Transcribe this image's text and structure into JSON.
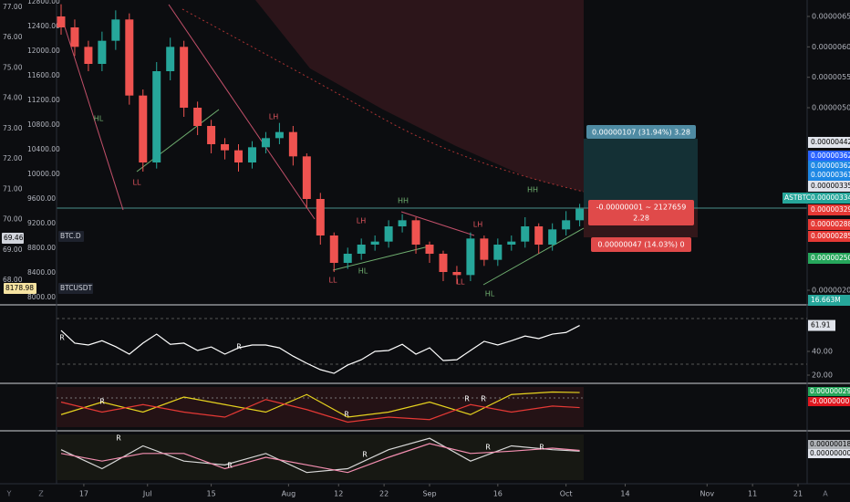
{
  "chart_data": [
    {
      "type": "candlestick",
      "symbol": "ASTBTC",
      "x": [
        11,
        14,
        17,
        20,
        23,
        26,
        29,
        32,
        35,
        38,
        41,
        44,
        47,
        50,
        53,
        56,
        59,
        62,
        65,
        68,
        71,
        74,
        77,
        80,
        83,
        86,
        89,
        92,
        95,
        98,
        101,
        104,
        107,
        110,
        113,
        116,
        119,
        122,
        125
      ],
      "open": [
        6.5e-06,
        6.32e-06,
        6e-06,
        5.72e-06,
        6.1e-06,
        6.45e-06,
        5.2e-06,
        4.1e-06,
        5.6e-06,
        6e-06,
        5e-06,
        4.7e-06,
        4.4e-06,
        4.3e-06,
        4.1e-06,
        4.35e-06,
        4.5e-06,
        4.6e-06,
        4.2e-06,
        3.5e-06,
        2.9e-06,
        2.45e-06,
        2.6e-06,
        2.75e-06,
        2.8e-06,
        3.05e-06,
        3.15e-06,
        2.75e-06,
        2.6e-06,
        2.3e-06,
        2.25e-06,
        2.85e-06,
        2.5e-06,
        2.75e-06,
        2.8e-06,
        3.05e-06,
        2.75e-06,
        3e-06,
        3.15e-06
      ],
      "high": [
        6.7e-06,
        6.45e-06,
        6.1e-06,
        6.25e-06,
        6.6e-06,
        6.55e-06,
        5.3e-06,
        5.75e-06,
        6.15e-06,
        6.1e-06,
        5.1e-06,
        4.8e-06,
        4.5e-06,
        4.4e-06,
        4.45e-06,
        4.6e-06,
        4.75e-06,
        4.7e-06,
        4.25e-06,
        3.6e-06,
        2.95e-06,
        2.7e-06,
        2.85e-06,
        2.9e-06,
        3.15e-06,
        3.25e-06,
        3.2e-06,
        2.8e-06,
        2.65e-06,
        2.4e-06,
        2.95e-06,
        2.9e-06,
        2.85e-06,
        2.9e-06,
        3.2e-06,
        3.1e-06,
        3.1e-06,
        3.3e-06,
        3.42e-06
      ],
      "low": [
        6.2e-06,
        5.85e-06,
        5.6e-06,
        5.6e-06,
        5.95e-06,
        5.05e-06,
        3.95e-06,
        4e-06,
        5.45e-06,
        4.85e-06,
        4.55e-06,
        4.25e-06,
        4.15e-06,
        3.95e-06,
        4e-06,
        4.25e-06,
        4.4e-06,
        4.05e-06,
        3.35e-06,
        2.75e-06,
        2.3e-06,
        2.35e-06,
        2.5e-06,
        2.65e-06,
        2.7e-06,
        2.95e-06,
        2.6e-06,
        2.45e-06,
        2.15e-06,
        2.1e-06,
        2.15e-06,
        2.4e-06,
        2.4e-06,
        2.65e-06,
        2.7e-06,
        2.6e-06,
        2.65e-06,
        2.9e-06,
        3.05e-06
      ],
      "close": [
        6.32e-06,
        6e-06,
        5.72e-06,
        6.1e-06,
        6.45e-06,
        5.2e-06,
        4.1e-06,
        5.6e-06,
        6e-06,
        5e-06,
        4.7e-06,
        4.4e-06,
        4.3e-06,
        4.1e-06,
        4.35e-06,
        4.5e-06,
        4.6e-06,
        4.2e-06,
        3.5e-06,
        2.9e-06,
        2.45e-06,
        2.6e-06,
        2.75e-06,
        2.8e-06,
        3.05e-06,
        3.15e-06,
        2.75e-06,
        2.6e-06,
        2.3e-06,
        2.25e-06,
        2.85e-06,
        2.5e-06,
        2.75e-06,
        2.8e-06,
        3.05e-06,
        2.75e-06,
        3e-06,
        3.15e-06,
        3.34e-06
      ],
      "up_color": "#26a69a",
      "down_color": "#ef5350",
      "xlim": [
        10,
        175
      ],
      "xticks": [
        {
          "value": 16,
          "label": "17"
        },
        {
          "value": 30,
          "label": "Jul"
        },
        {
          "value": 44,
          "label": "15"
        },
        {
          "value": 61,
          "label": "Aug"
        },
        {
          "value": 72,
          "label": "12"
        },
        {
          "value": 82,
          "label": "22"
        },
        {
          "value": 92,
          "label": "Sep"
        },
        {
          "value": 107,
          "label": "16"
        },
        {
          "value": 122,
          "label": "Oct"
        },
        {
          "value": 135,
          "label": "14"
        },
        {
          "value": 153,
          "label": "Nov"
        },
        {
          "value": 163,
          "label": "11"
        },
        {
          "value": 173,
          "label": "21"
        }
      ],
      "ylim": [
        1.79e-06,
        6.77e-06
      ],
      "yticks": [
        {
          "value": 6.5e-06,
          "label": "0.00000650"
        },
        {
          "value": 6e-06,
          "label": "0.00000600"
        },
        {
          "value": 5.5e-06,
          "label": "0.00000550"
        },
        {
          "value": 5e-06,
          "label": "0.00000500"
        },
        {
          "value": 2e-06,
          "label": "0.00000200"
        }
      ],
      "last_price": "0.00000334",
      "price_tags": [
        "0.00000442",
        "0.00000362",
        "0.00000362",
        "0.00000361",
        "0.00000335",
        "0.00000329",
        "0.00000288",
        "0.00000285",
        "0.00000250"
      ],
      "volume_tag": "16.663M",
      "left_axes": [
        {
          "name": "BTC.D",
          "ylim": [
            67.25,
            77.24
          ],
          "yticks": [
            {
              "value": 77,
              "label": "77.00"
            },
            {
              "value": 76,
              "label": "76.00"
            },
            {
              "value": 75,
              "label": "75.00"
            },
            {
              "value": 74,
              "label": "74.00"
            },
            {
              "value": 73,
              "label": "73.00"
            },
            {
              "value": 72,
              "label": "72.00"
            },
            {
              "value": 71,
              "label": "71.00"
            },
            {
              "value": 70,
              "label": "70.00"
            },
            {
              "value": 69,
              "label": "69.00"
            },
            {
              "value": 68,
              "label": "68.00"
            }
          ],
          "last": "69.46"
        },
        {
          "name": "BTCUSDT",
          "ylim": [
            7911,
            12830
          ],
          "yticks": [
            {
              "value": 12800,
              "label": "12800.00"
            },
            {
              "value": 12400,
              "label": "12400.00"
            },
            {
              "value": 12000,
              "label": "12000.00"
            },
            {
              "value": 11600,
              "label": "11600.00"
            },
            {
              "value": 11200,
              "label": "11200.00"
            },
            {
              "value": 10800,
              "label": "10800.00"
            },
            {
              "value": 10400,
              "label": "10400.00"
            },
            {
              "value": 10000,
              "label": "10000.00"
            },
            {
              "value": 9600,
              "label": "9600.00"
            },
            {
              "value": 9200,
              "label": "9200.00"
            },
            {
              "value": 8800,
              "label": "8800.00"
            },
            {
              "value": 8400,
              "label": "8400.00"
            },
            {
              "value": 8000,
              "label": "8000.00"
            }
          ],
          "last": "8178.98"
        }
      ],
      "measure": {
        "upper": "0.00000107 (31.94%) 3.28",
        "mid": "-0.00000001 ~ 2127659",
        "mid2": "2.28",
        "lower": "0.00000047 (14.03%) 0"
      },
      "annotations": [
        "HL",
        "LL",
        "LH",
        "LH",
        "LL",
        "HL",
        "HH",
        "LH",
        "LL",
        "HL",
        "HH"
      ],
      "toolbar": [
        "Y",
        "Z",
        "A"
      ]
    },
    {
      "type": "line",
      "color": "#ffffff",
      "x": [
        11,
        14,
        17,
        20,
        23,
        26,
        29,
        32,
        35,
        38,
        41,
        44,
        47,
        50,
        53,
        56,
        59,
        62,
        65,
        68,
        71,
        74,
        77,
        80,
        83,
        86,
        89,
        92,
        95,
        98,
        101,
        104,
        107,
        110,
        113,
        116,
        119,
        122,
        125
      ],
      "values": [
        57.7,
        47,
        45.4,
        49,
        44,
        37.7,
        47,
        54.6,
        46,
        47,
        40.8,
        43.8,
        37.7,
        43,
        45.4,
        45.4,
        43,
        36,
        30,
        24.6,
        21.5,
        28.5,
        33,
        40,
        40.8,
        46,
        37.7,
        43,
        32.3,
        33,
        40.8,
        48.5,
        45.4,
        49,
        53,
        50.8,
        54.6,
        56,
        61.91
      ],
      "ylim": [
        14.6,
        76.2
      ],
      "yticks": [
        {
          "value": 40,
          "label": "40.00"
        },
        {
          "value": 20,
          "label": "20.00"
        }
      ],
      "annotations": [
        "R",
        "R"
      ]
    },
    {
      "type": "line",
      "x": [
        11,
        20,
        29,
        38,
        47,
        56,
        65,
        74,
        83,
        92,
        101,
        110,
        119,
        125
      ],
      "series": [
        {
          "color": "#e6d31f",
          "values": [
            -1.5e-07,
            1e-07,
            -1e-07,
            2e-07,
            5e-08,
            -1e-07,
            2.5e-07,
            -2e-07,
            -1e-07,
            1e-07,
            -1.5e-07,
            2.5e-07,
            3e-07,
            2.9e-07
          ]
        },
        {
          "color": "#e53935",
          "values": [
            1e-07,
            -1e-07,
            5e-08,
            -1e-07,
            -2e-07,
            1.5e-07,
            -5e-08,
            -3e-07,
            -2e-07,
            -2.5e-07,
            5e-08,
            -1e-07,
            2e-08,
            -1e-08
          ]
        }
      ],
      "ylim": [
        -4e-07,
        4e-07
      ],
      "tags": [
        "0.00000029",
        "-0.00000001"
      ],
      "annotations": [
        "R",
        "R",
        "R",
        "R"
      ]
    },
    {
      "type": "line",
      "x": [
        11,
        20,
        29,
        38,
        47,
        56,
        65,
        74,
        83,
        92,
        101,
        110,
        119,
        125
      ],
      "series": [
        {
          "color": "#d9d9d9",
          "values": [
            1e-07,
            -1.5e-07,
            1.5e-07,
            -5e-08,
            -1e-07,
            5e-08,
            -2e-07,
            -1.5e-07,
            1e-07,
            2.5e-07,
            -5e-08,
            1.5e-07,
            1e-07,
            8e-08
          ]
        },
        {
          "color": "#f48fb1",
          "values": [
            5e-08,
            -5e-08,
            5e-08,
            5e-08,
            -1.5e-07,
            0,
            -1e-07,
            -2e-07,
            0,
            1.8e-07,
            5e-08,
            8e-08,
            1.2e-07,
            9e-08
          ]
        }
      ],
      "ylim": [
        -3e-07,
        3e-07
      ],
      "tags": [
        "0.00000018",
        "0.00000000"
      ],
      "annotations": [
        "R",
        "R",
        "R",
        "R",
        "R"
      ]
    }
  ]
}
